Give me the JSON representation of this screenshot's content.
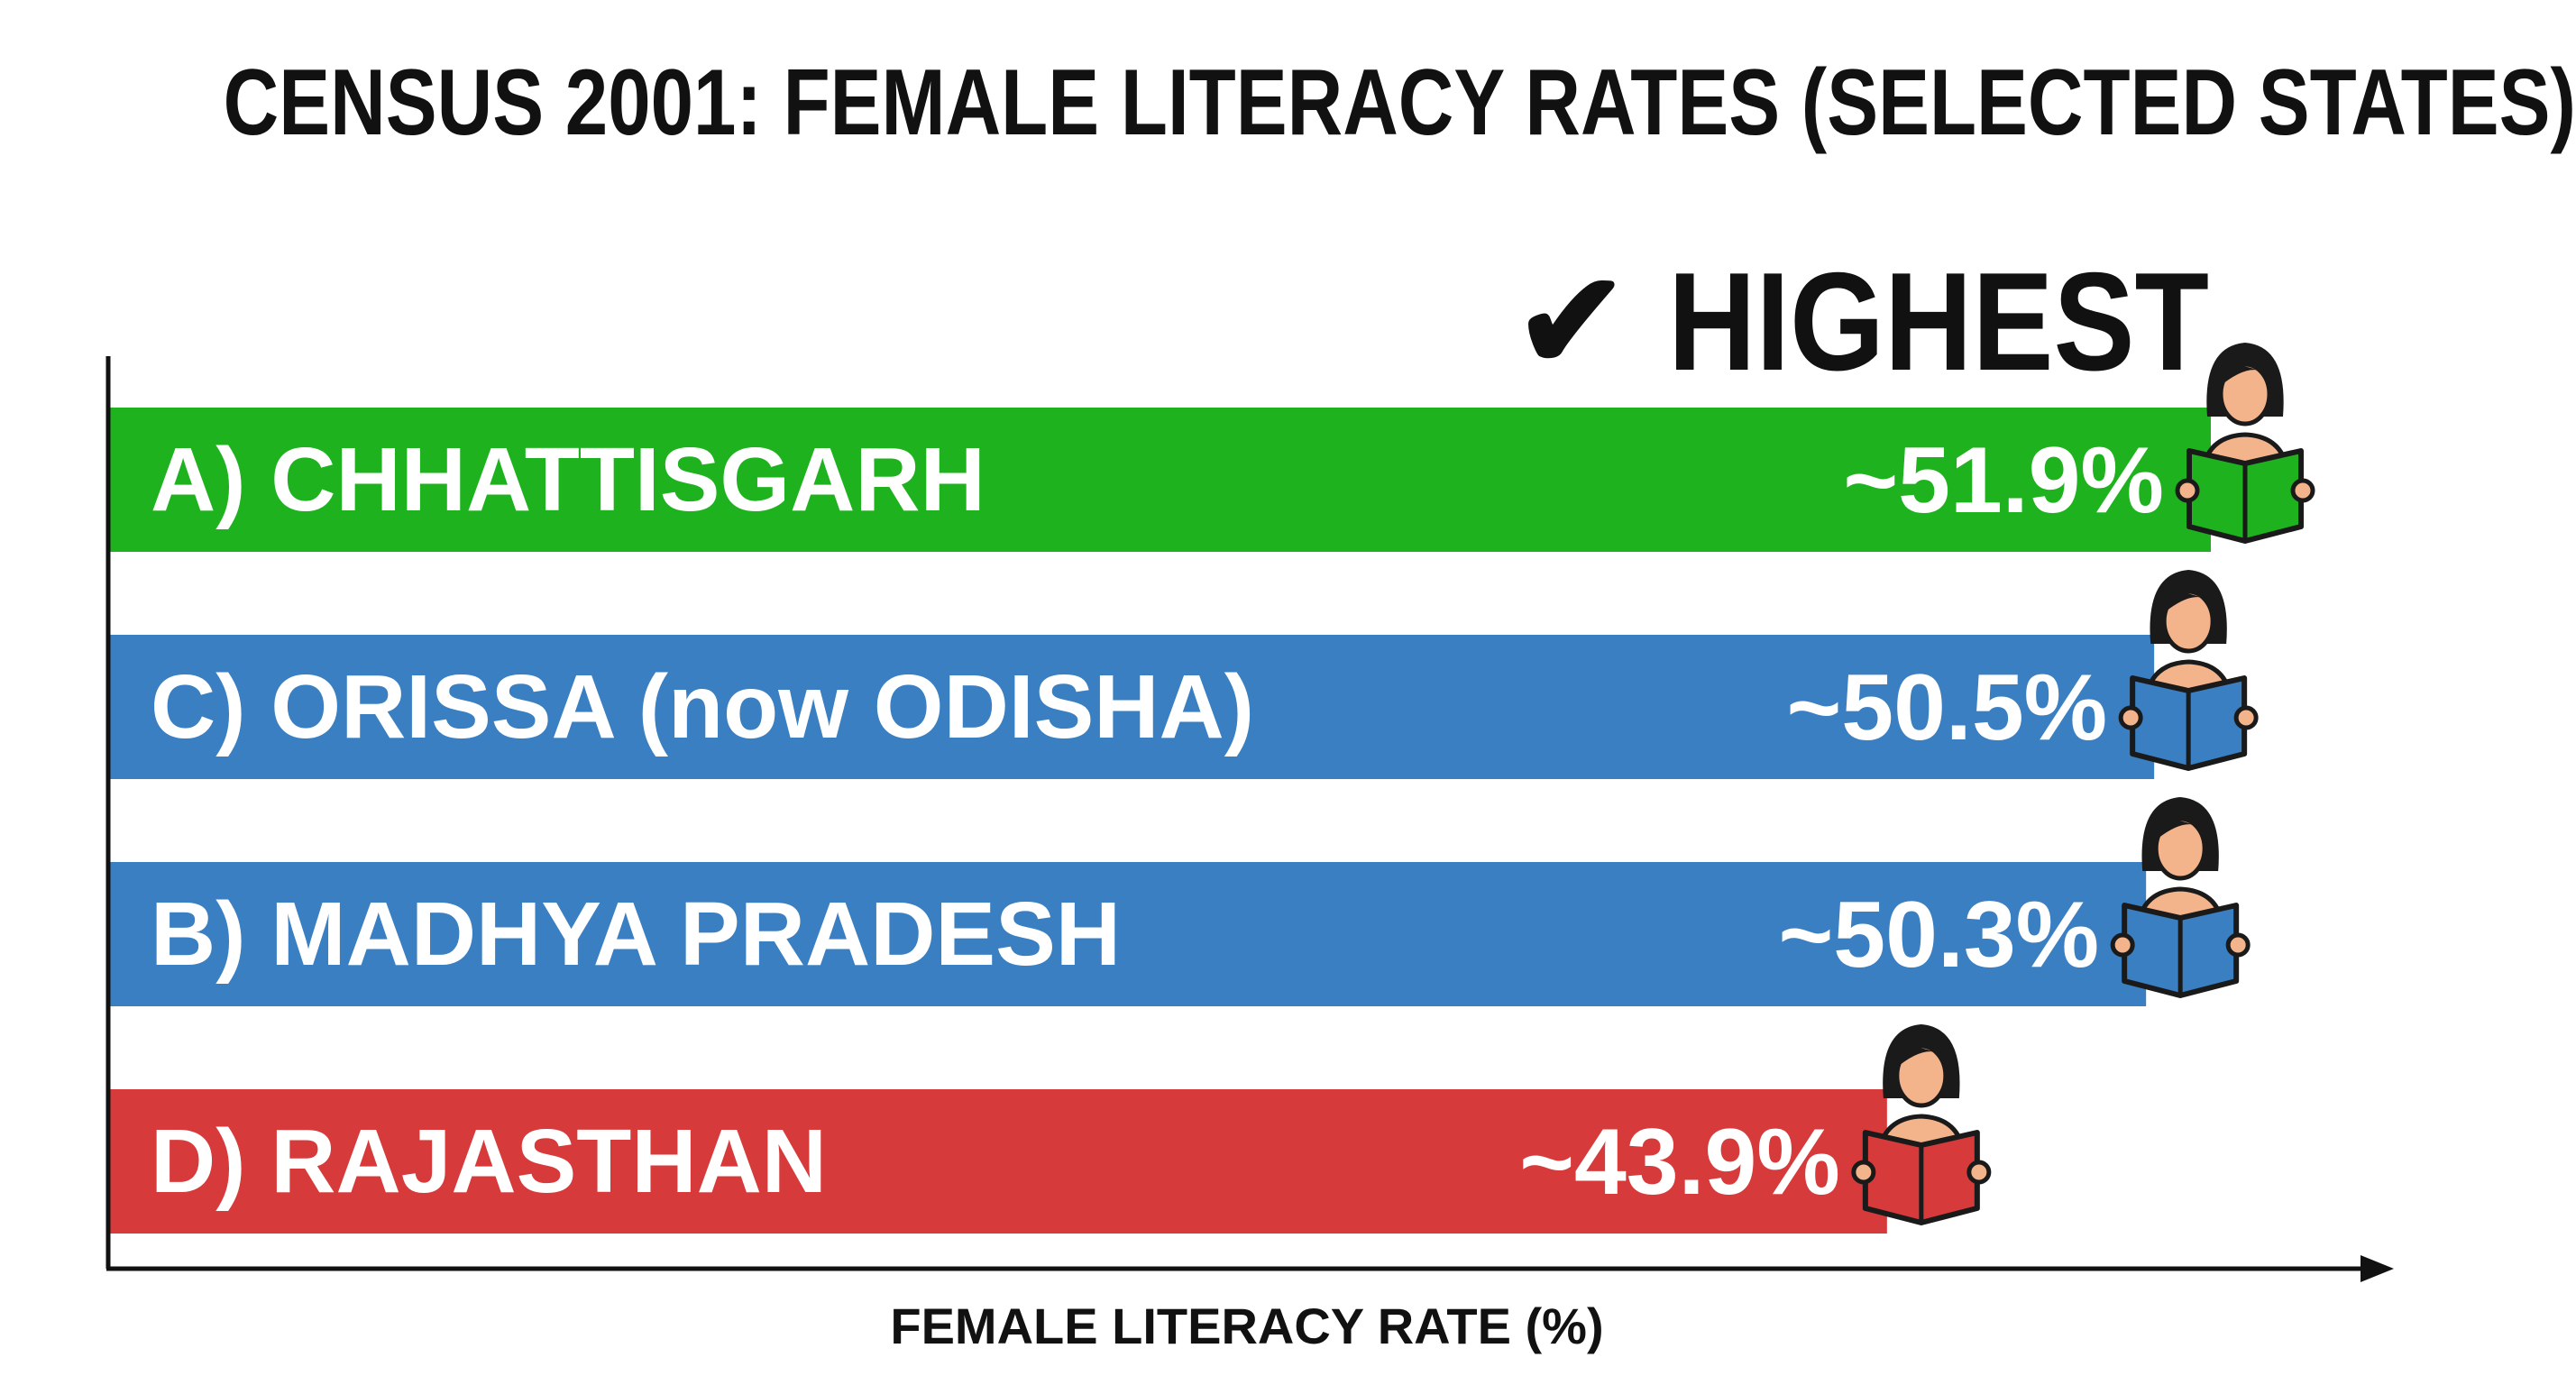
{
  "chart_data": {
    "type": "bar",
    "orientation": "horizontal",
    "title": "CENSUS 2001: FEMALE LITERACY RATES (SELECTED STATES)",
    "xlabel": "FEMALE LITERACY RATE (%)",
    "ylabel": "",
    "grid": false,
    "categories": [
      "A) CHHATTISGARH",
      "C) ORISSA (now ODISHA)",
      "B) MADHYA PRADESH",
      "D) RAJASTHAN"
    ],
    "values": [
      51.9,
      50.5,
      50.3,
      43.9
    ],
    "value_labels": [
      "~51.9%",
      "~50.5%",
      "~50.3%",
      "~43.9%"
    ],
    "bar_colors": [
      "#1eb31e",
      "#3a7fc1",
      "#3a7fc1",
      "#d63a3a"
    ],
    "bar_icon": "reading-woman-icon",
    "annotation": {
      "text": "HIGHEST",
      "symbol": "✔",
      "target_category": "A) CHHATTISGARH"
    }
  }
}
